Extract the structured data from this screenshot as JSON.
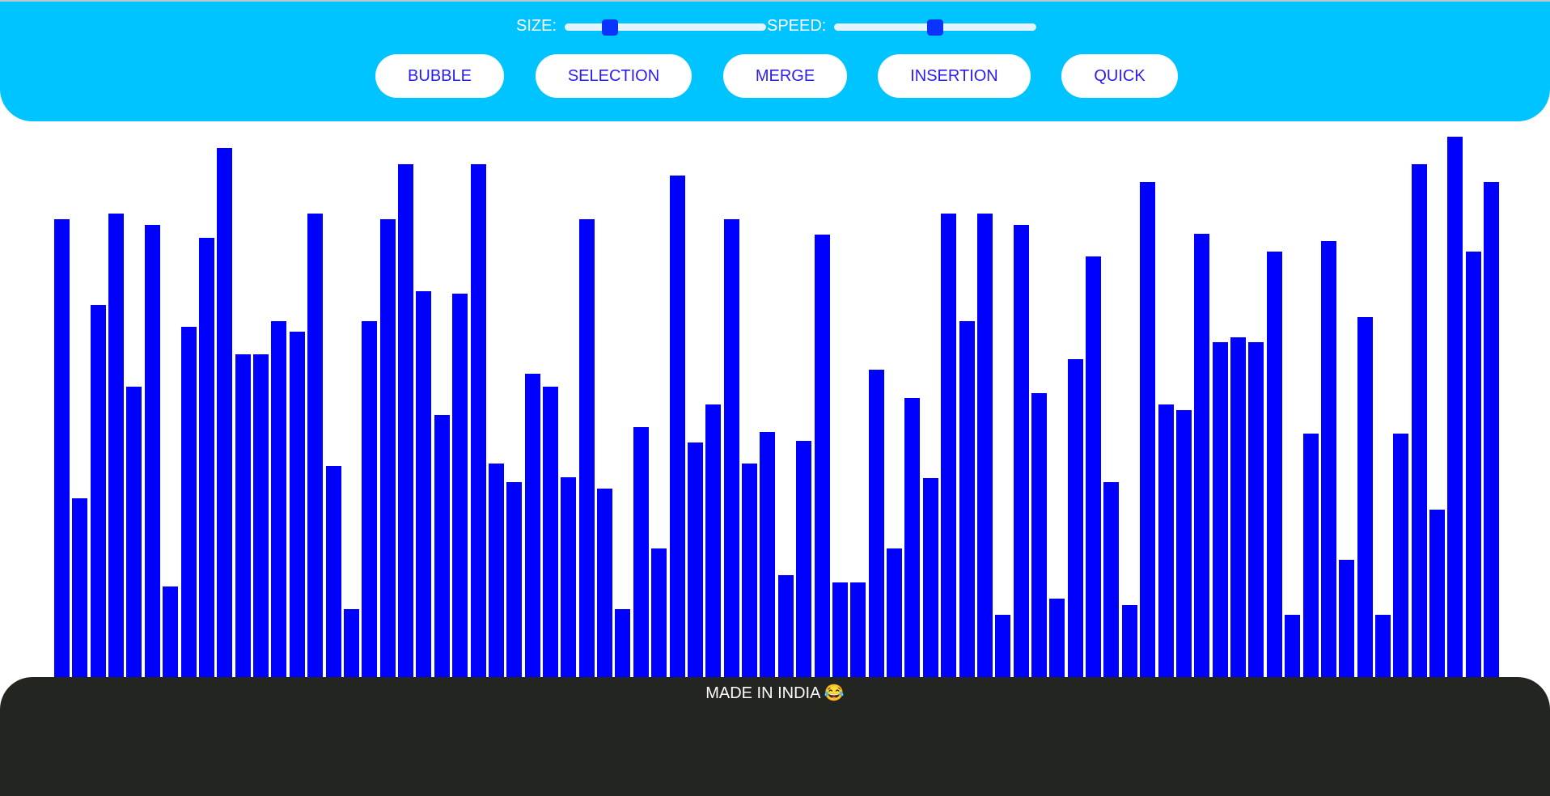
{
  "controls": {
    "size_label": "SIZE:",
    "speed_label": "SPEED:",
    "size_value": 0.2,
    "speed_value": 0.5
  },
  "buttons": {
    "bubble": "BUBBLE",
    "selection": "SELECTION",
    "merge": "MERGE",
    "insertion": "INSERTION",
    "quick": "QUICK"
  },
  "colors": {
    "header": "#00c4ff",
    "bar": "#0000ff",
    "button_text": "#2a1cf0",
    "footer": "#232520"
  },
  "bars": {
    "heights": [
      566,
      221,
      460,
      573,
      359,
      559,
      112,
      433,
      543,
      654,
      399,
      399,
      440,
      427,
      573,
      261,
      84,
      440,
      566,
      634,
      477,
      324,
      474,
      634,
      264,
      241,
      375,
      359,
      247,
      566,
      233,
      84,
      309,
      159,
      620,
      290,
      337,
      566,
      264,
      303,
      126,
      292,
      547,
      117,
      117,
      380,
      159,
      345,
      246,
      573,
      440,
      573,
      77,
      559,
      351,
      97,
      393,
      520,
      241,
      89,
      612,
      337,
      330,
      548,
      414,
      420,
      414,
      526,
      77,
      301,
      539,
      145,
      445,
      77,
      301,
      634,
      207,
      668,
      526,
      612
    ]
  },
  "footer": {
    "text": "MADE IN INDIA 😂"
  }
}
